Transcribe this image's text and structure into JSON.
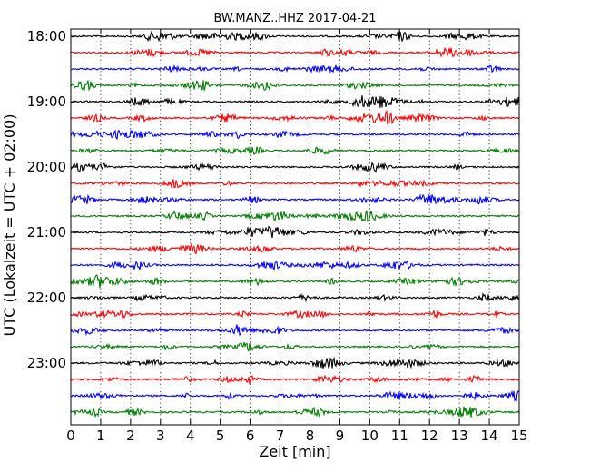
{
  "chart_data": {
    "type": "line",
    "title": "BW.MANZ..HHZ 2017-04-21",
    "xlabel": "Zeit  [min]",
    "ylabel": "UTC (Lokalzeit = UTC + 02:00)",
    "xlim": [
      0,
      15
    ],
    "x_ticks": [
      "0",
      "1",
      "2",
      "3",
      "4",
      "5",
      "6",
      "7",
      "8",
      "9",
      "10",
      "11",
      "12",
      "13",
      "14",
      "15"
    ],
    "y_tick_labels": [
      "18:00",
      "19:00",
      "20:00",
      "21:00",
      "22:00",
      "23:00"
    ],
    "grid": "vertical dotted at each minute",
    "trace_colors": [
      "#000000",
      "#ff0000",
      "#0000ff",
      "#008000"
    ],
    "traces": [
      {
        "start": "18:00",
        "color": "#000000"
      },
      {
        "start": "18:15",
        "color": "#ff0000"
      },
      {
        "start": "18:30",
        "color": "#0000ff"
      },
      {
        "start": "18:45",
        "color": "#008000"
      },
      {
        "start": "19:00",
        "color": "#000000"
      },
      {
        "start": "19:15",
        "color": "#ff0000"
      },
      {
        "start": "19:30",
        "color": "#0000ff"
      },
      {
        "start": "19:45",
        "color": "#008000"
      },
      {
        "start": "20:00",
        "color": "#000000"
      },
      {
        "start": "20:15",
        "color": "#ff0000"
      },
      {
        "start": "20:30",
        "color": "#0000ff"
      },
      {
        "start": "20:45",
        "color": "#008000"
      },
      {
        "start": "21:00",
        "color": "#000000"
      },
      {
        "start": "21:15",
        "color": "#ff0000"
      },
      {
        "start": "21:30",
        "color": "#0000ff"
      },
      {
        "start": "21:45",
        "color": "#008000"
      },
      {
        "start": "22:00",
        "color": "#000000"
      },
      {
        "start": "22:15",
        "color": "#ff0000"
      },
      {
        "start": "22:30",
        "color": "#0000ff"
      },
      {
        "start": "22:45",
        "color": "#008000"
      },
      {
        "start": "23:00",
        "color": "#000000"
      },
      {
        "start": "23:15",
        "color": "#ff0000"
      },
      {
        "start": "23:30",
        "color": "#0000ff"
      },
      {
        "start": "23:45",
        "color": "#008000"
      }
    ]
  }
}
